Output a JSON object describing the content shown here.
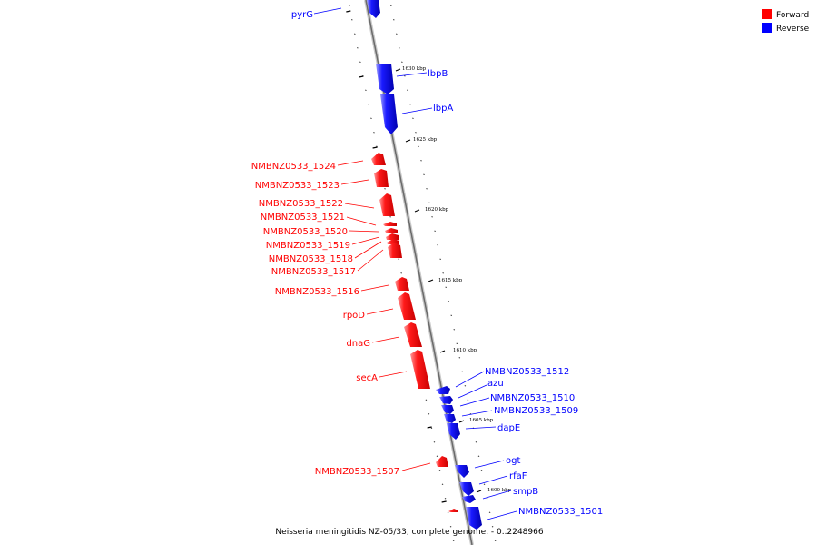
{
  "title": "Neisseria meningitidis NZ-05/33, complete genome. - 0..2248966",
  "legend": {
    "forward": {
      "label": "Forward",
      "color": "#ff0000"
    },
    "reverse": {
      "label": "Reverse",
      "color": "#0000ff"
    }
  },
  "ticks": [
    "1630 kbp",
    "1625 kbp",
    "1620 kbp",
    "1615 kbp",
    "1610 kbp",
    "1605 kbp",
    "1600 kbp"
  ],
  "genes": {
    "pyrG": "pyrG",
    "lbpB": "lbpB",
    "lbpA": "lbpA",
    "g1524": "NMBNZ0533_1524",
    "g1523": "NMBNZ0533_1523",
    "g1522": "NMBNZ0533_1522",
    "g1521": "NMBNZ0533_1521",
    "g1520": "NMBNZ0533_1520",
    "g1519": "NMBNZ0533_1519",
    "g1518": "NMBNZ0533_1518",
    "g1517": "NMBNZ0533_1517",
    "g1516": "NMBNZ0533_1516",
    "rpoD": "rpoD",
    "dnaG": "dnaG",
    "secA": "secA",
    "g1512": "NMBNZ0533_1512",
    "azu": "azu",
    "g1510": "NMBNZ0533_1510",
    "g1509": "NMBNZ0533_1509",
    "dapE": "dapE",
    "g1507": "NMBNZ0533_1507",
    "ogt": "ogt",
    "rfaF": "rfaF",
    "smpB": "smpB",
    "g1501": "NMBNZ0533_1501"
  }
}
